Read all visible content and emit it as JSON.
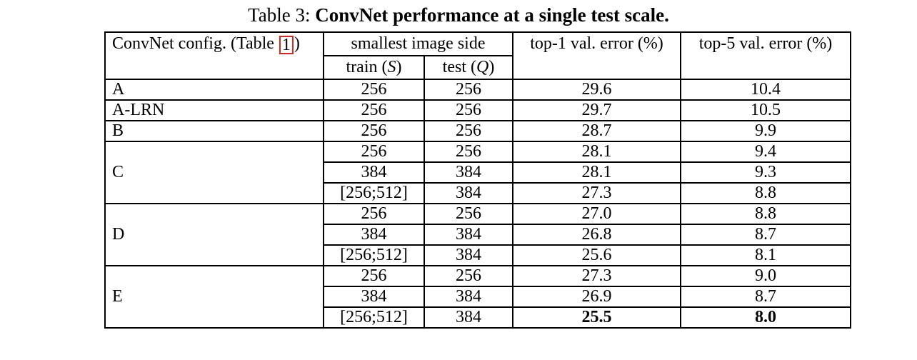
{
  "caption": {
    "prefix": "Table 3: ",
    "emphasis": "ConvNet performance at a single test scale."
  },
  "colors": {
    "citation_box": "#d7281e",
    "text": "#000000",
    "background": "#ffffff"
  },
  "table": {
    "header": {
      "config_prefix": "ConvNet config. (Table ",
      "config_citation": "1",
      "config_suffix": ")",
      "smallest_image_side": "smallest image side",
      "train_prefix": "train (",
      "train_symbol": "S",
      "train_suffix": ")",
      "test_prefix": "test (",
      "test_symbol": "Q",
      "test_suffix": ")",
      "top1": "top-1 val. error (%)",
      "top5": "top-5 val. error (%)"
    },
    "rows": [
      {
        "config": "A",
        "train": "256",
        "test": "256",
        "top1": "29.6",
        "top5": "10.4"
      },
      {
        "config": "A-LRN",
        "train": "256",
        "test": "256",
        "top1": "29.7",
        "top5": "10.5"
      },
      {
        "config": "B",
        "train": "256",
        "test": "256",
        "top1": "28.7",
        "top5": "9.9"
      },
      {
        "config": "C",
        "train": "256",
        "test": "256",
        "top1": "28.1",
        "top5": "9.4"
      },
      {
        "train": "384",
        "test": "384",
        "top1": "28.1",
        "top5": "9.3"
      },
      {
        "train": "[256;512]",
        "test": "384",
        "top1": "27.3",
        "top5": "8.8"
      },
      {
        "config": "D",
        "train": "256",
        "test": "256",
        "top1": "27.0",
        "top5": "8.8"
      },
      {
        "train": "384",
        "test": "384",
        "top1": "26.8",
        "top5": "8.7"
      },
      {
        "train": "[256;512]",
        "test": "384",
        "top1": "25.6",
        "top5": "8.1"
      },
      {
        "config": "E",
        "train": "256",
        "test": "256",
        "top1": "27.3",
        "top5": "9.0"
      },
      {
        "train": "384",
        "test": "384",
        "top1": "26.9",
        "top5": "8.7"
      },
      {
        "train": "[256;512]",
        "test": "384",
        "top1": "25.5",
        "top5": "8.0",
        "bold": true
      }
    ]
  }
}
